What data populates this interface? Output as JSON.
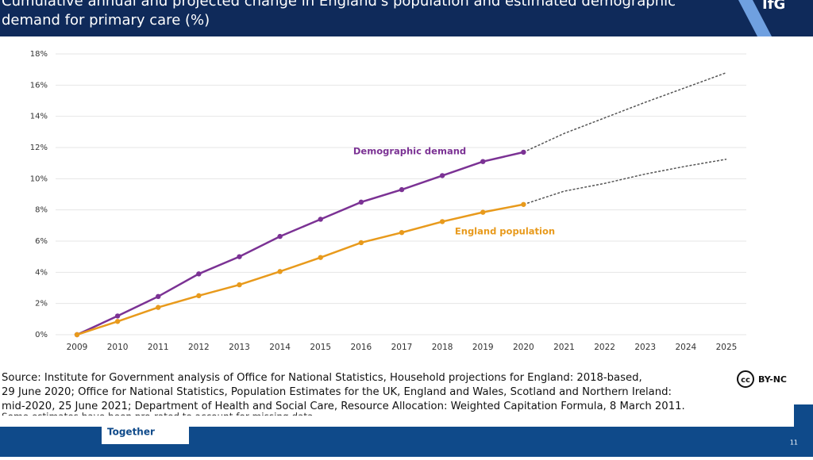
{
  "header": {
    "title_line1": "Cumulative annual and projected change in England's population and estimated demographic",
    "title_line2": "demand for primary care (%)",
    "logo": "IfG"
  },
  "chart_data": {
    "type": "line",
    "categories": [
      "2009",
      "2010",
      "2011",
      "2012",
      "2013",
      "2014",
      "2015",
      "2016",
      "2017",
      "2018",
      "2019",
      "2020",
      "2021",
      "2022",
      "2023",
      "2024",
      "2025"
    ],
    "series": [
      {
        "name": "Demographic demand",
        "color": "#7b3294",
        "values": [
          0,
          1.2,
          2.45,
          3.9,
          5.0,
          6.3,
          7.4,
          8.5,
          9.3,
          10.2,
          11.1,
          11.7,
          null,
          null,
          null,
          null,
          null
        ],
        "projected": [
          null,
          null,
          null,
          null,
          null,
          null,
          null,
          null,
          null,
          null,
          null,
          null,
          12.9,
          13.9,
          14.9,
          15.85,
          16.8
        ]
      },
      {
        "name": "England population",
        "color": "#e89a1c",
        "values": [
          0,
          0.85,
          1.75,
          2.5,
          3.2,
          4.05,
          4.95,
          5.9,
          6.55,
          7.25,
          7.85,
          8.35,
          null,
          null,
          null,
          null,
          null
        ],
        "projected": [
          null,
          null,
          null,
          null,
          null,
          null,
          null,
          null,
          null,
          null,
          null,
          null,
          9.2,
          9.7,
          10.3,
          10.8,
          11.25
        ]
      }
    ],
    "ylim": [
      0,
      18
    ],
    "yticks": [
      {
        "value": 0,
        "label": "0%"
      },
      {
        "value": 2,
        "label": "2%"
      },
      {
        "value": 4,
        "label": "4%"
      },
      {
        "value": 6,
        "label": "6%"
      },
      {
        "value": 8,
        "label": "8%"
      },
      {
        "value": 10,
        "label": "10%"
      },
      {
        "value": 12,
        "label": "12%"
      },
      {
        "value": 14,
        "label": "14%"
      },
      {
        "value": 16,
        "label": "16%"
      },
      {
        "value": 18,
        "label": "18%"
      }
    ],
    "grid": true
  },
  "footer": {
    "source_line1": "Source: Institute for Government analysis of Office for National Statistics, Household projections for England: 2018-based,",
    "source_line2": "29 June 2020; Office for National Statistics, Population Estimates for the UK, England and Wales, Scotland and Northern Ireland:",
    "source_line3": "mid-2020, 25 June 2021; Department of Health and Social Care, Resource Allocation: Weighted Capitation Formula, 8 March 2011.",
    "note": "Some estimates have been pro-rated to account for missing data.",
    "cc": "cc",
    "license": "BY-NC",
    "together": "Together",
    "page": "11"
  }
}
